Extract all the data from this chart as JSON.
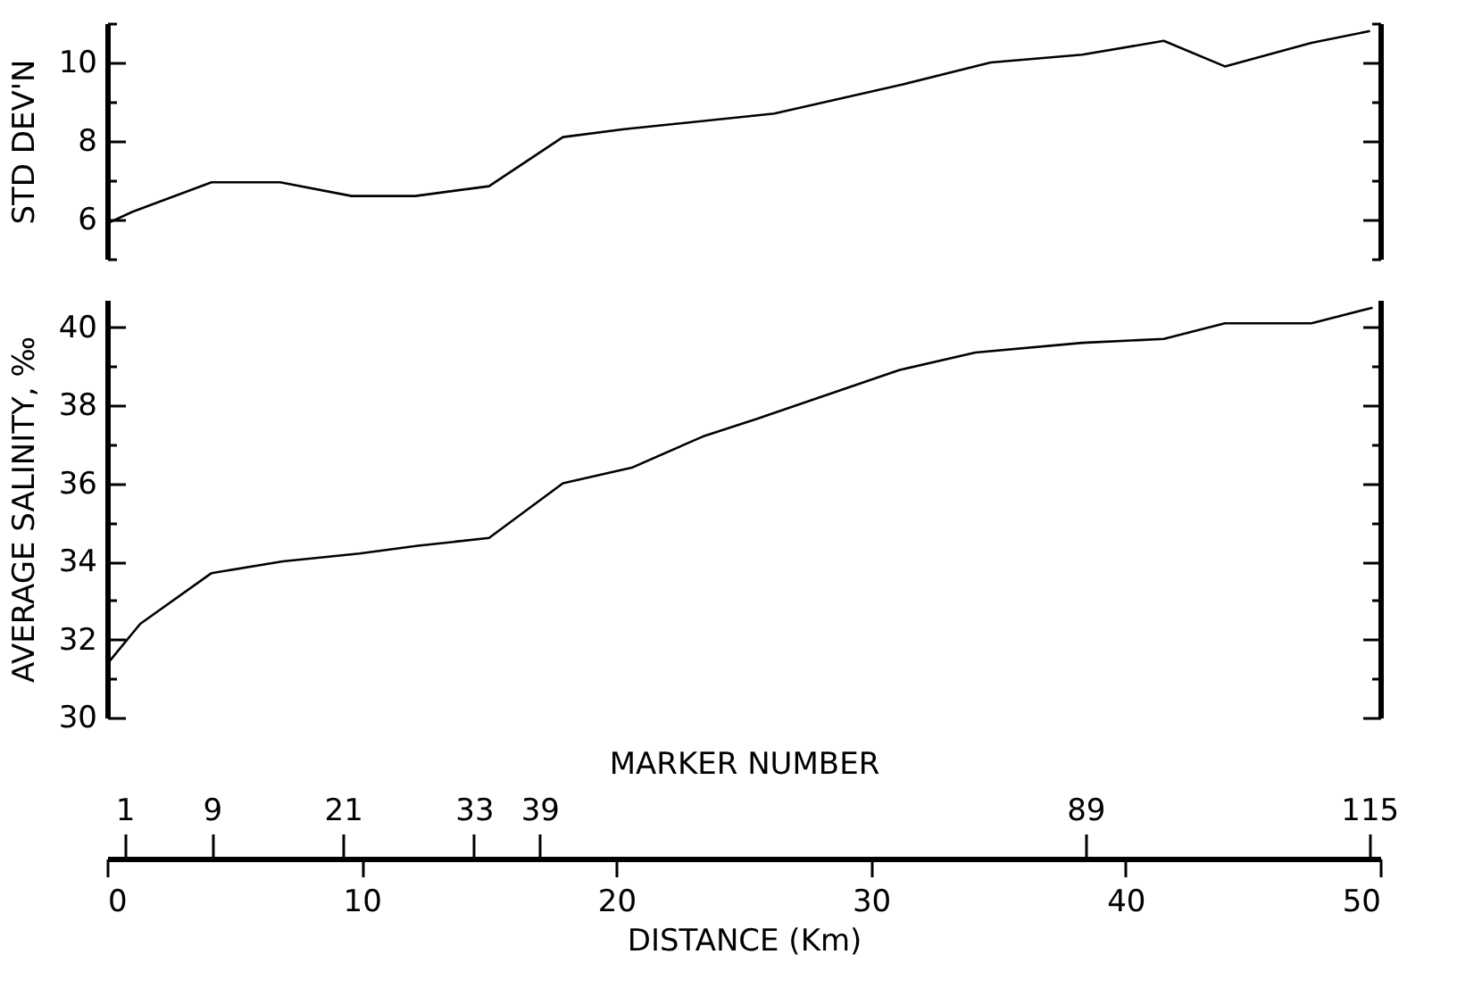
{
  "chart_data": [
    {
      "type": "line",
      "ylabel": "STD DEV'N",
      "tick_labels": "y",
      "xlim": [
        0,
        50
      ],
      "ylim": [
        5,
        11
      ],
      "yticks": [
        {
          "value": 5,
          "label": null
        },
        6,
        {
          "value": 7,
          "label": null
        },
        8,
        {
          "value": 9,
          "label": null
        },
        10,
        {
          "value": 11,
          "label": null
        }
      ],
      "x": [
        0,
        1.0,
        4.1,
        6.8,
        9.6,
        12.1,
        15.0,
        17.9,
        20.3,
        26.2,
        31.3,
        34.7,
        38.3,
        41.5,
        43.9,
        47.3,
        49.6
      ],
      "series": [
        {
          "color": "#000000",
          "values": [
            5.9,
            6.2,
            6.95,
            6.95,
            6.6,
            6.6,
            6.85,
            8.1,
            8.3,
            8.7,
            9.45,
            10.0,
            10.2,
            10.55,
            9.9,
            10.5,
            10.8
          ]
        }
      ]
    },
    {
      "type": "line",
      "ylabel": "AVERAGE SALINITY, ‰",
      "xlabel": "DISTANCE (Km)",
      "x2label": "MARKER NUMBER",
      "xlim": [
        0,
        50
      ],
      "ylim": [
        30,
        40.7
      ],
      "xticks": [
        0,
        10,
        20,
        30,
        40,
        50
      ],
      "x2lim": [
        -0.6,
        116
      ],
      "x2ticks": [
        1,
        9,
        21,
        33,
        39,
        89,
        115
      ],
      "yticks": [
        30,
        {
          "value": 31,
          "label": null
        },
        32,
        {
          "value": 33,
          "label": null
        },
        34,
        {
          "value": 35,
          "label": null
        },
        36,
        {
          "value": 37,
          "label": null
        },
        38,
        {
          "value": 39,
          "label": null
        },
        40
      ],
      "x": [
        0.1,
        1.3,
        4.1,
        6.9,
        9.9,
        12.2,
        15.0,
        17.9,
        20.6,
        23.4,
        25.5,
        31.1,
        34.1,
        38.3,
        41.5,
        43.9,
        47.3,
        49.7
      ],
      "series": [
        {
          "color": "#000000",
          "values": [
            31.45,
            32.4,
            33.7,
            34.0,
            34.2,
            34.4,
            34.6,
            36.0,
            36.4,
            37.2,
            37.65,
            38.9,
            39.35,
            39.6,
            39.7,
            40.1,
            40.1,
            40.5
          ]
        }
      ]
    }
  ]
}
